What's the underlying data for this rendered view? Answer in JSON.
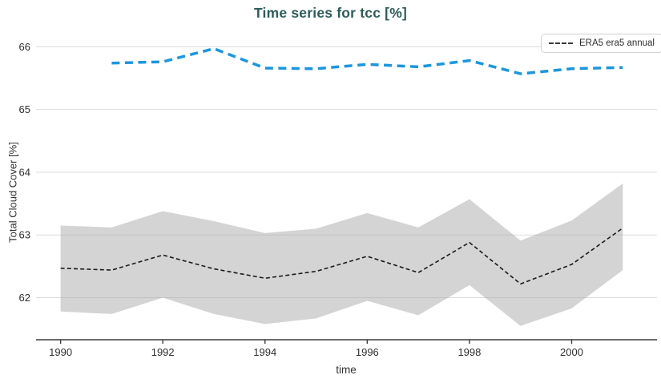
{
  "title": "Time series for tcc [%]",
  "legend": {
    "items": [
      {
        "label": "ERA5 era5 annual",
        "line_style": "dashed",
        "color": "#3a3a3a"
      }
    ],
    "position": "top-right"
  },
  "colors": {
    "title": "#2d5c5a",
    "annual_line": "#1a1a1a",
    "uncertainty_band": "#d2d2d2",
    "blue_line": "#1c96dd",
    "gridline": "#dcdcdc",
    "axis_line": "#3c3c3c",
    "tick_label": "#2e2e2e"
  },
  "chart_data": {
    "type": "line",
    "title": "Time series for tcc [%]",
    "xlabel": "time",
    "ylabel": "Total Cloud Cover [%]",
    "x_ticks": [
      1990,
      1992,
      1994,
      1996,
      1998,
      2000
    ],
    "y_ticks": [
      62,
      63,
      64,
      65,
      66
    ],
    "x_range": [
      1989.52,
      2001.67
    ],
    "y_range": [
      61.33,
      66.26
    ],
    "grid": true,
    "legend_position": "top-right",
    "series": [
      {
        "name": "ERA5 era5 annual uncertainty band",
        "type": "band",
        "color": "#d2d2d2",
        "x": [
          1990,
          1991,
          1992,
          1993,
          1994,
          1995,
          1996,
          1997,
          1998,
          1999,
          2000,
          2001
        ],
        "upper": [
          63.15,
          63.12,
          63.38,
          63.22,
          63.03,
          63.1,
          63.35,
          63.12,
          63.57,
          62.91,
          63.23,
          63.82
        ],
        "lower": [
          61.78,
          61.74,
          62.0,
          61.74,
          61.58,
          61.67,
          61.95,
          61.72,
          62.2,
          61.55,
          61.83,
          62.44
        ]
      },
      {
        "name": "ERA5 era5 annual",
        "type": "line",
        "style": "dashed",
        "color": "#1a1a1a",
        "x": [
          1990,
          1991,
          1992,
          1993,
          1994,
          1995,
          1996,
          1997,
          1998,
          1999,
          2000,
          2001
        ],
        "values": [
          62.47,
          62.44,
          62.68,
          62.46,
          62.31,
          62.42,
          62.66,
          62.4,
          62.88,
          62.22,
          62.53,
          63.11
        ]
      },
      {
        "name": "ERA5 upper series (blue dashed)",
        "type": "line",
        "style": "dashed",
        "color": "#1c96dd",
        "x": [
          1991,
          1992,
          1993,
          1994,
          1995,
          1996,
          1997,
          1998,
          1999,
          2000,
          2001
        ],
        "values": [
          65.74,
          65.76,
          65.97,
          65.66,
          65.65,
          65.72,
          65.68,
          65.78,
          65.57,
          65.65,
          65.67
        ]
      }
    ]
  }
}
